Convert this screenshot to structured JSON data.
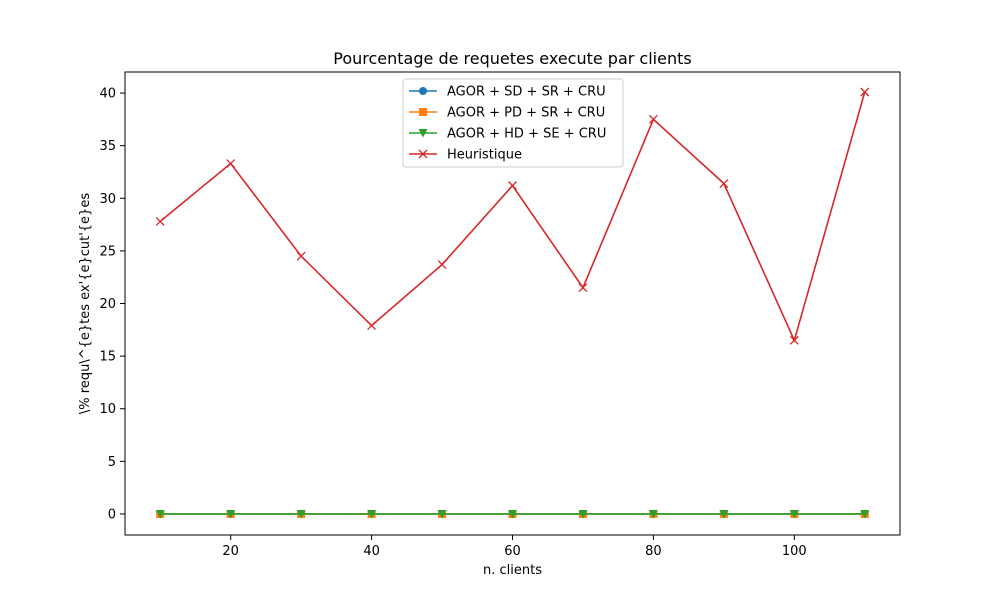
{
  "chart_data": {
    "type": "line",
    "title": "Pourcentage de requetes execute par clients",
    "xlabel": "n. clients",
    "ylabel": "\\% requ\\^{e}tes ex'{e}cut'{e}es",
    "xlim": [
      5,
      115
    ],
    "ylim": [
      -2,
      42
    ],
    "x": [
      10,
      20,
      30,
      40,
      50,
      60,
      70,
      80,
      90,
      100,
      110
    ],
    "xticks": [
      20,
      40,
      60,
      80,
      100
    ],
    "yticks": [
      0,
      5,
      10,
      15,
      20,
      25,
      30,
      35,
      40
    ],
    "grid": false,
    "legend_position": "upper center",
    "series": [
      {
        "name": "AGOR + SD + SR + CRU",
        "color": "#1f77b4",
        "marker": "circle",
        "values": [
          0,
          0,
          0,
          0,
          0,
          0,
          0,
          0,
          0,
          0,
          0
        ]
      },
      {
        "name": "AGOR + PD + SR + CRU",
        "color": "#ff7f0e",
        "marker": "square",
        "values": [
          0,
          0,
          0,
          0,
          0,
          0,
          0,
          0,
          0,
          0,
          0
        ]
      },
      {
        "name": "AGOR + HD + SE + CRU",
        "color": "#2ca02c",
        "marker": "triangle-down",
        "values": [
          0,
          0,
          0,
          0,
          0,
          0,
          0,
          0,
          0,
          0,
          0
        ]
      },
      {
        "name": "Heuristique",
        "color": "#d62728",
        "marker": "x",
        "values": [
          27.8,
          33.3,
          24.5,
          17.9,
          23.7,
          31.2,
          21.5,
          37.5,
          31.4,
          16.5,
          40.1
        ]
      }
    ]
  }
}
